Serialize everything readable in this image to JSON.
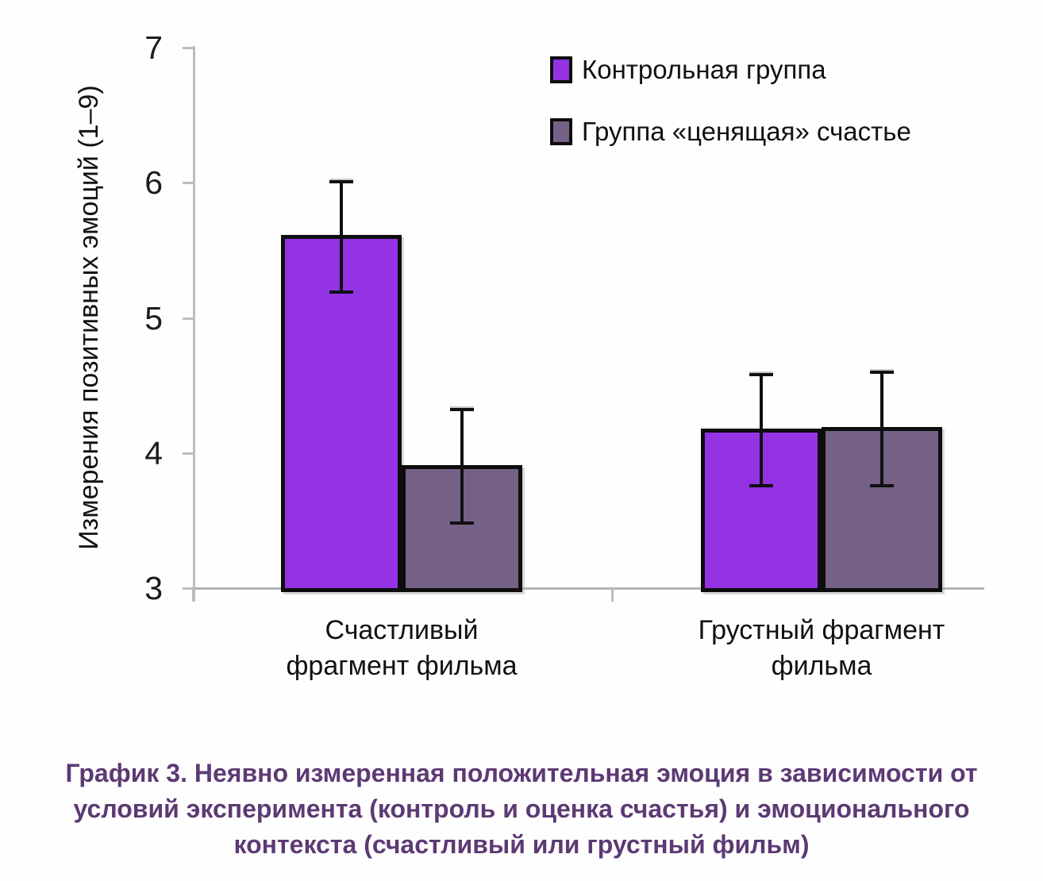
{
  "chart_data": {
    "type": "bar",
    "title": "",
    "xlabel": "",
    "ylabel": "Измерения позитивных эмоций (1–9)",
    "ylim": [
      3,
      7
    ],
    "yticks": [
      3,
      4,
      5,
      6,
      7
    ],
    "grid": false,
    "legend_position": "top-right-inside",
    "categories": [
      "Счастливый фрагмент фильма",
      "Грустный фрагмент фильма"
    ],
    "category_label_lines": [
      [
        "Счастливый",
        "фрагмент фильма"
      ],
      [
        "Грустный фрагмент",
        "фильма"
      ]
    ],
    "series": [
      {
        "name": "Контрольная группа",
        "color": "#9433E4",
        "values": [
          5.6,
          4.17
        ],
        "errors": [
          0.41,
          0.41
        ]
      },
      {
        "name": "Группа «ценящая» счастье",
        "color": "#756086",
        "values": [
          3.9,
          4.18
        ],
        "errors": [
          0.42,
          0.42
        ]
      }
    ]
  },
  "caption": {
    "color": "#5C3A74",
    "lines": [
      "График 3. Неявно измеренная положительная эмоция в зависимости от",
      "условий эксперимента (контроль и оценка счастья) и эмоционального",
      "контекста (счастливый или грустный фильм)"
    ]
  }
}
